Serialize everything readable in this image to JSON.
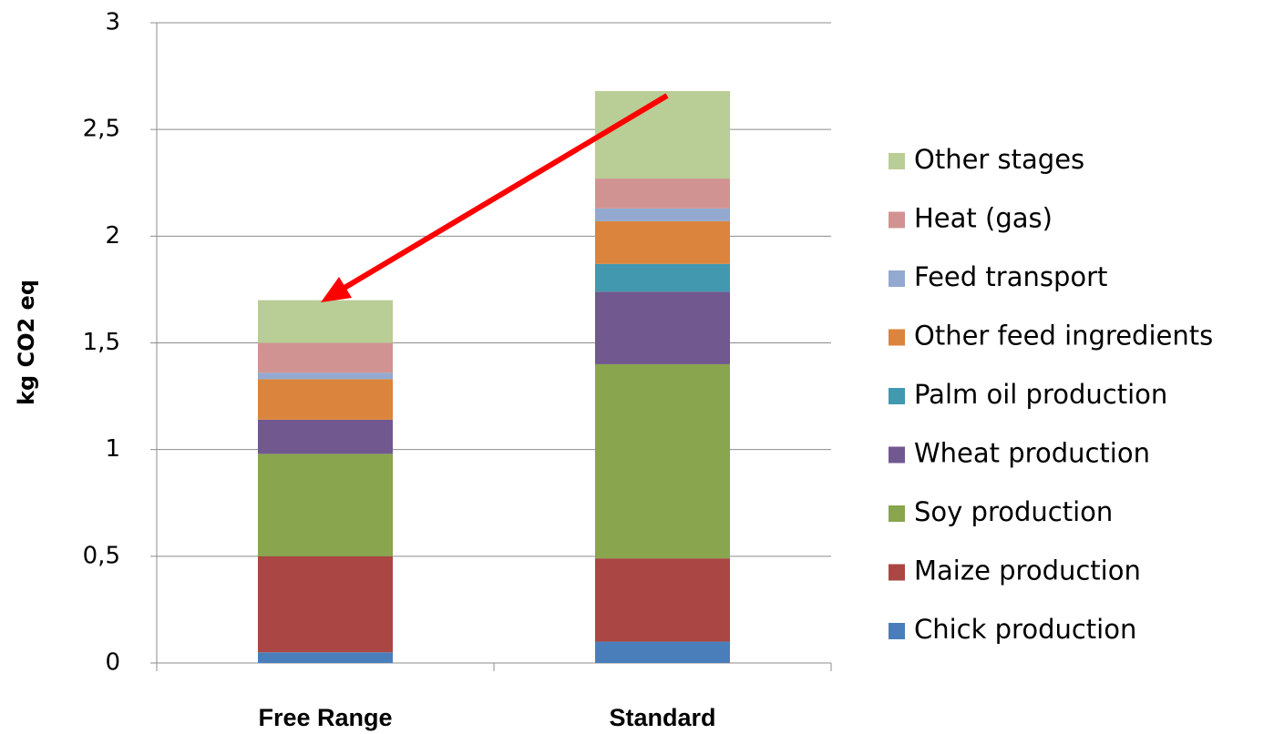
{
  "chart_data": {
    "type": "stacked_bar",
    "y_label": "kg CO2 eq",
    "categories": [
      "Free Range",
      "Standard"
    ],
    "series": [
      {
        "name": "Chick production",
        "color": "#4a7ebb",
        "values": [
          0.05,
          0.1
        ]
      },
      {
        "name": "Maize production",
        "color": "#aa4643",
        "values": [
          0.45,
          0.39
        ]
      },
      {
        "name": "Soy production",
        "color": "#89a54e",
        "values": [
          0.48,
          0.91
        ]
      },
      {
        "name": "Wheat production",
        "color": "#71588f",
        "values": [
          0.16,
          0.34
        ]
      },
      {
        "name": "Palm oil production",
        "color": "#4198af",
        "values": [
          0,
          0.13
        ]
      },
      {
        "name": "Other feed ingredients",
        "color": "#db843d",
        "values": [
          0.19,
          0.2
        ]
      },
      {
        "name": "Feed transport",
        "color": "#93a9cf",
        "values": [
          0.03,
          0.06
        ]
      },
      {
        "name": "Heat (gas)",
        "color": "#d19392",
        "values": [
          0.14,
          0.14
        ]
      },
      {
        "name": "Other stages",
        "color": "#b9cd96",
        "values": [
          0.2,
          0.41
        ]
      }
    ],
    "ylim": [
      0,
      3
    ],
    "yticks": [
      0,
      {
        "value": 0.5,
        "label": "0,5"
      },
      1,
      {
        "value": 1.5,
        "label": "1,5"
      },
      2,
      {
        "value": 2.5,
        "label": "2,5"
      },
      3
    ],
    "grid": true,
    "legend": "right"
  }
}
